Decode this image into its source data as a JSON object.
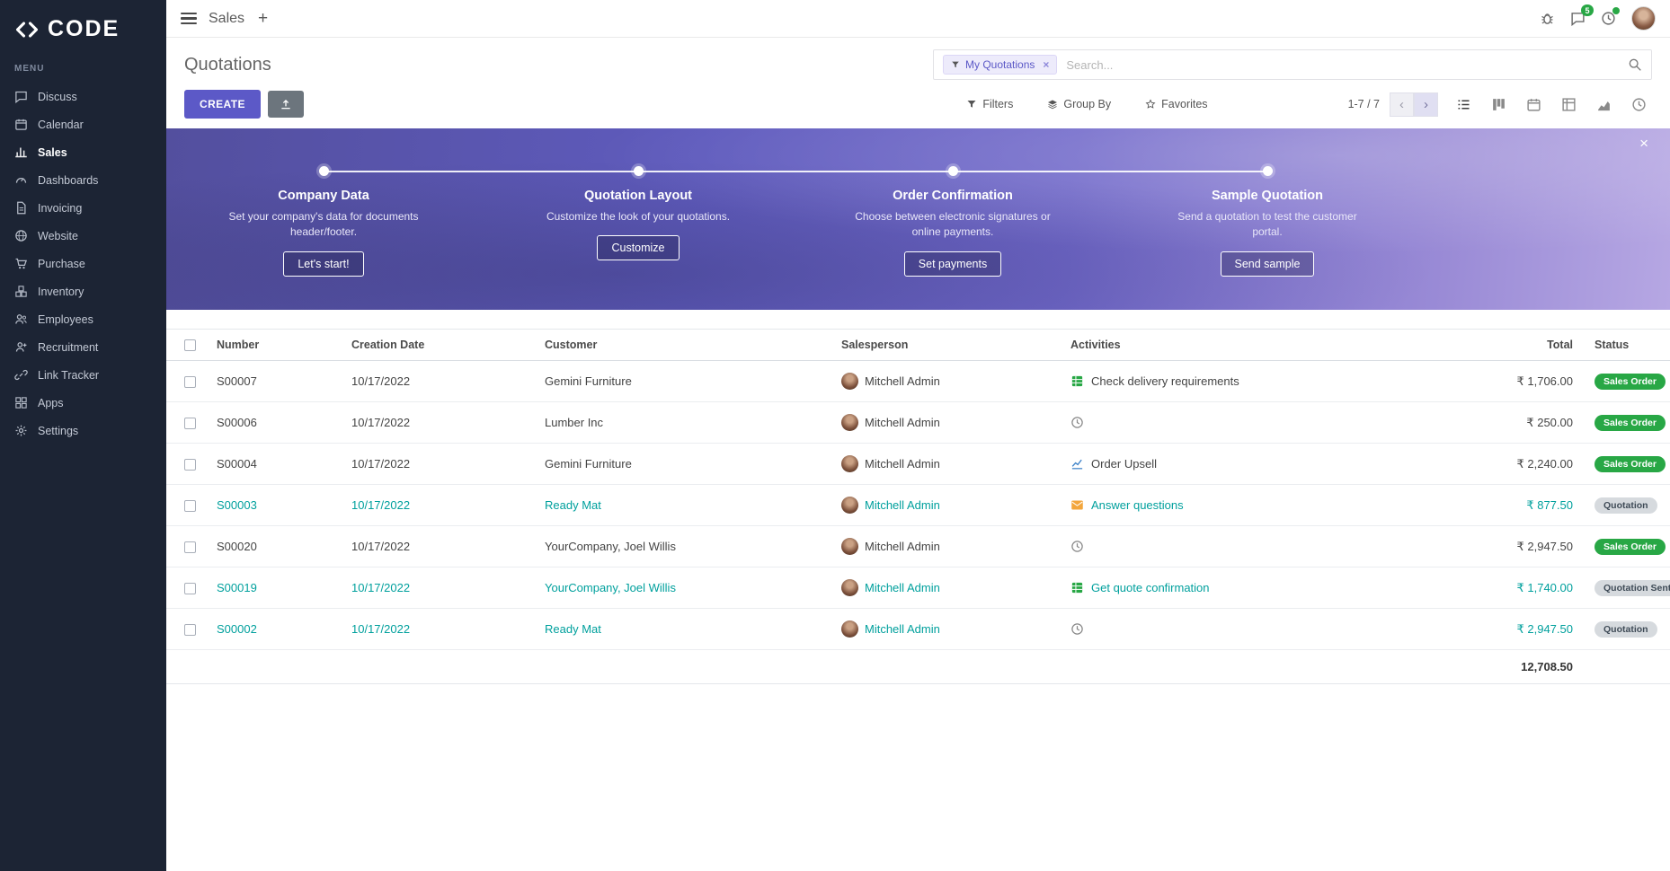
{
  "brand": {
    "name": "CODE"
  },
  "topbar": {
    "app_name": "Sales",
    "message_count": "5"
  },
  "sidebar": {
    "menu_label": "MENU",
    "items": [
      {
        "icon": "chat",
        "label": "Discuss",
        "active": false
      },
      {
        "icon": "calendar",
        "label": "Calendar",
        "active": false
      },
      {
        "icon": "chart-bar",
        "label": "Sales",
        "active": true
      },
      {
        "icon": "gauge",
        "label": "Dashboards",
        "active": false
      },
      {
        "icon": "file",
        "label": "Invoicing",
        "active": false
      },
      {
        "icon": "globe",
        "label": "Website",
        "active": false
      },
      {
        "icon": "cart",
        "label": "Purchase",
        "active": false
      },
      {
        "icon": "boxes",
        "label": "Inventory",
        "active": false
      },
      {
        "icon": "users",
        "label": "Employees",
        "active": false
      },
      {
        "icon": "user-plus",
        "label": "Recruitment",
        "active": false
      },
      {
        "icon": "link",
        "label": "Link Tracker",
        "active": false
      },
      {
        "icon": "grid",
        "label": "Apps",
        "active": false
      },
      {
        "icon": "gear",
        "label": "Settings",
        "active": false
      }
    ]
  },
  "control_panel": {
    "title": "Quotations",
    "search": {
      "chip_label": "My Quotations",
      "placeholder": "Search..."
    },
    "create_label": "CREATE",
    "filters_label": "Filters",
    "group_by_label": "Group By",
    "favorites_label": "Favorites",
    "pager_text": "1-7 / 7"
  },
  "banner": {
    "steps": [
      {
        "title": "Company Data",
        "description": "Set your company's data for documents header/footer.",
        "button": "Let's start!"
      },
      {
        "title": "Quotation Layout",
        "description": "Customize the look of your quotations.",
        "button": "Customize"
      },
      {
        "title": "Order Confirmation",
        "description": "Choose between electronic signatures or online payments.",
        "button": "Set payments"
      },
      {
        "title": "Sample Quotation",
        "description": "Send a quotation to test the customer portal.",
        "button": "Send sample"
      }
    ]
  },
  "table": {
    "columns": [
      "Number",
      "Creation Date",
      "Customer",
      "Salesperson",
      "Activities",
      "Total",
      "Status"
    ],
    "currency": "₹",
    "rows": [
      {
        "number": "S00007",
        "date": "10/17/2022",
        "customer": "Gemini Furniture",
        "salesperson": "Mitchell Admin",
        "activity": {
          "icon": "tasks",
          "label": "Check delivery requirements"
        },
        "total": "1,706.00",
        "status": "Sales Order",
        "status_type": "success",
        "highlighted": false
      },
      {
        "number": "S00006",
        "date": "10/17/2022",
        "customer": "Lumber Inc",
        "salesperson": "Mitchell Admin",
        "activity": {
          "icon": "clock",
          "label": ""
        },
        "total": "250.00",
        "status": "Sales Order",
        "status_type": "success",
        "highlighted": false
      },
      {
        "number": "S00004",
        "date": "10/17/2022",
        "customer": "Gemini Furniture",
        "salesperson": "Mitchell Admin",
        "activity": {
          "icon": "chart-line",
          "label": "Order Upsell"
        },
        "total": "2,240.00",
        "status": "Sales Order",
        "status_type": "success",
        "highlighted": false
      },
      {
        "number": "S00003",
        "date": "10/17/2022",
        "customer": "Ready Mat",
        "salesperson": "Mitchell Admin",
        "activity": {
          "icon": "envelope",
          "label": "Answer questions"
        },
        "total": "877.50",
        "status": "Quotation",
        "status_type": "muted",
        "highlighted": true
      },
      {
        "number": "S00020",
        "date": "10/17/2022",
        "customer": "YourCompany, Joel Willis",
        "salesperson": "Mitchell Admin",
        "activity": {
          "icon": "clock",
          "label": ""
        },
        "total": "2,947.50",
        "status": "Sales Order",
        "status_type": "success",
        "highlighted": false
      },
      {
        "number": "S00019",
        "date": "10/17/2022",
        "customer": "YourCompany, Joel Willis",
        "salesperson": "Mitchell Admin",
        "activity": {
          "icon": "tasks",
          "label": "Get quote confirmation"
        },
        "total": "1,740.00",
        "status": "Quotation Sent",
        "status_type": "muted",
        "highlighted": true
      },
      {
        "number": "S00002",
        "date": "10/17/2022",
        "customer": "Ready Mat",
        "salesperson": "Mitchell Admin",
        "activity": {
          "icon": "clock",
          "label": ""
        },
        "total": "2,947.50",
        "status": "Quotation",
        "status_type": "muted",
        "highlighted": true
      }
    ],
    "footer_total": "12,708.50"
  }
}
